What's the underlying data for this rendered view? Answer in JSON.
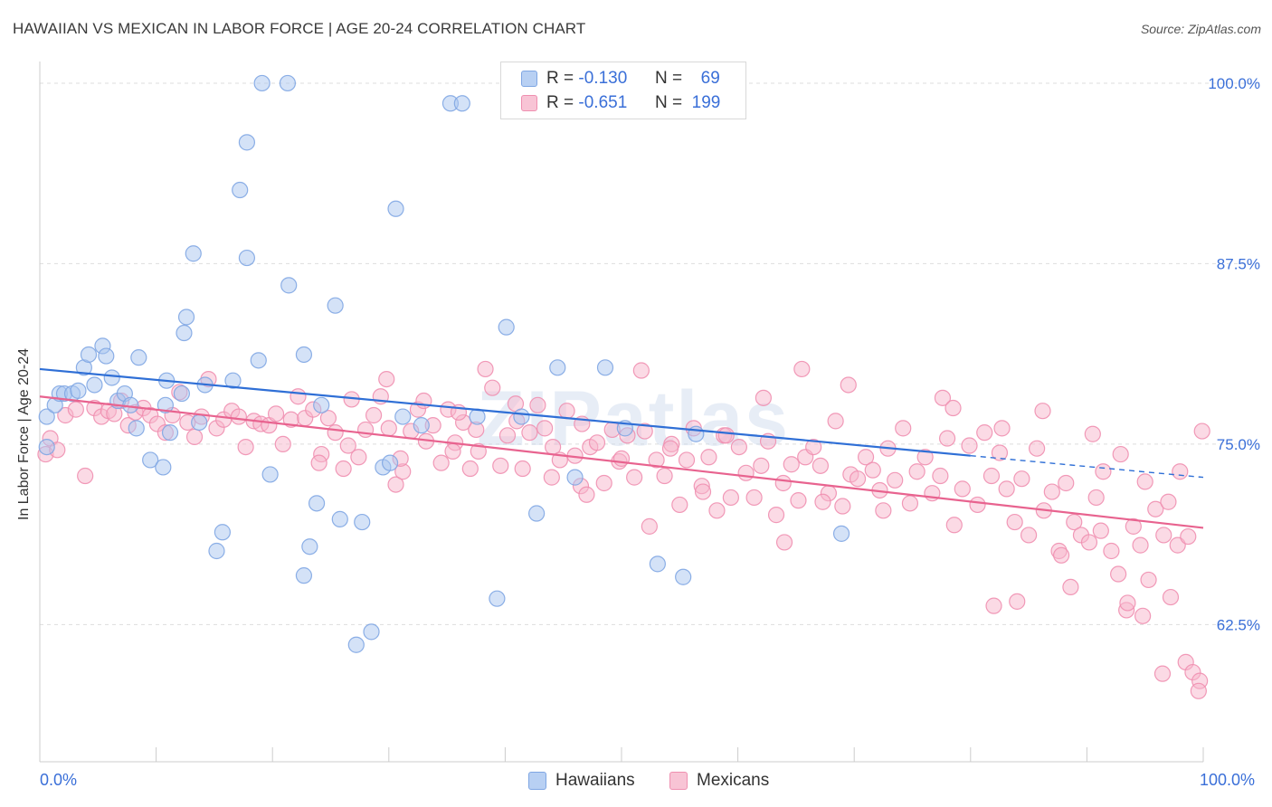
{
  "title": "HAWAIIAN VS MEXICAN IN LABOR FORCE | AGE 20-24 CORRELATION CHART",
  "source": "Source: ZipAtlas.com",
  "watermark": "ZIPatlas",
  "legend_top": [
    {
      "r_label": "R =",
      "r_value": "-0.130",
      "n_label": "N =",
      "n_value": "69"
    },
    {
      "r_label": "R =",
      "r_value": "-0.651",
      "n_label": "N =",
      "n_value": "199"
    }
  ],
  "colors": {
    "blue_fill": "#a9c6f0",
    "blue_stroke": "#7fa6e3",
    "blue_line": "#2f6fd6",
    "pink_fill": "#f7b6cb",
    "pink_stroke": "#ef8fb0",
    "pink_line": "#e8638f",
    "axis_text": "#3a6fd8",
    "grid": "#dddddd"
  },
  "chart_data": {
    "type": "scatter",
    "title": "HAWAIIAN VS MEXICAN IN LABOR FORCE | AGE 20-24 CORRELATION CHART",
    "xlabel": "",
    "ylabel": "In Labor Force | Age 20-24",
    "xlim": [
      0,
      100
    ],
    "ylim": [
      53,
      101.5
    ],
    "x_tick_labels": [
      "0.0%",
      "100.0%"
    ],
    "y_ticks": [
      62.5,
      75.0,
      87.5,
      100.0
    ],
    "y_tick_labels": [
      "62.5%",
      "75.0%",
      "87.5%",
      "100.0%"
    ],
    "grid": true,
    "legend": "bottom",
    "series": [
      {
        "name": "Hawaiians",
        "r": -0.13,
        "n": 69,
        "trend": {
          "x": [
            0,
            80
          ],
          "y": [
            80.2,
            74.2
          ],
          "dashed_to": [
            100,
            72.7
          ]
        },
        "points": [
          [
            0.6,
            76.9
          ],
          [
            0.6,
            74.8
          ],
          [
            1.3,
            77.7
          ],
          [
            1.7,
            78.5
          ],
          [
            2.1,
            78.5
          ],
          [
            2.8,
            78.5
          ],
          [
            3.3,
            78.7
          ],
          [
            3.8,
            80.3
          ],
          [
            4.2,
            81.2
          ],
          [
            4.7,
            79.1
          ],
          [
            5.4,
            81.8
          ],
          [
            5.7,
            81.1
          ],
          [
            6.2,
            79.6
          ],
          [
            6.7,
            78.0
          ],
          [
            7.3,
            78.5
          ],
          [
            7.8,
            77.7
          ],
          [
            8.3,
            76.1
          ],
          [
            8.5,
            81.0
          ],
          [
            9.5,
            73.9
          ],
          [
            10.6,
            73.4
          ],
          [
            10.8,
            77.7
          ],
          [
            10.9,
            79.4
          ],
          [
            11.2,
            75.8
          ],
          [
            12.2,
            78.5
          ],
          [
            12.4,
            82.7
          ],
          [
            12.6,
            83.8
          ],
          [
            13.2,
            88.2
          ],
          [
            13.7,
            76.5
          ],
          [
            14.2,
            79.1
          ],
          [
            15.2,
            67.6
          ],
          [
            15.7,
            68.9
          ],
          [
            16.6,
            79.4
          ],
          [
            17.2,
            92.6
          ],
          [
            17.8,
            95.9
          ],
          [
            17.8,
            87.9
          ],
          [
            18.8,
            80.8
          ],
          [
            19.1,
            100.0
          ],
          [
            19.8,
            72.9
          ],
          [
            21.3,
            100.0
          ],
          [
            21.4,
            86.0
          ],
          [
            22.7,
            81.2
          ],
          [
            22.7,
            65.9
          ],
          [
            23.2,
            67.9
          ],
          [
            23.8,
            70.9
          ],
          [
            24.2,
            77.7
          ],
          [
            25.4,
            84.6
          ],
          [
            25.8,
            69.8
          ],
          [
            27.2,
            61.1
          ],
          [
            27.7,
            69.6
          ],
          [
            28.5,
            62.0
          ],
          [
            29.5,
            73.4
          ],
          [
            30.1,
            73.7
          ],
          [
            30.6,
            91.3
          ],
          [
            31.2,
            76.9
          ],
          [
            32.8,
            76.3
          ],
          [
            35.3,
            98.6
          ],
          [
            36.3,
            98.6
          ],
          [
            37.6,
            76.9
          ],
          [
            39.3,
            64.3
          ],
          [
            40.1,
            83.1
          ],
          [
            41.4,
            76.9
          ],
          [
            42.7,
            70.2
          ],
          [
            44.5,
            80.3
          ],
          [
            46.0,
            72.7
          ],
          [
            48.6,
            80.3
          ],
          [
            50.3,
            76.1
          ],
          [
            53.1,
            66.7
          ],
          [
            55.3,
            65.8
          ],
          [
            56.4,
            75.7
          ],
          [
            68.9,
            68.8
          ]
        ]
      },
      {
        "name": "Mexicans",
        "r": -0.651,
        "n": 199,
        "trend": {
          "x": [
            0,
            100
          ],
          "y": [
            78.3,
            69.2
          ]
        },
        "points": [
          [
            0.5,
            74.3
          ],
          [
            0.9,
            75.4
          ],
          [
            1.5,
            74.6
          ],
          [
            2.2,
            77.0
          ],
          [
            3.1,
            77.4
          ],
          [
            3.9,
            72.8
          ],
          [
            4.7,
            77.5
          ],
          [
            5.3,
            76.9
          ],
          [
            5.9,
            77.3
          ],
          [
            6.4,
            77.1
          ],
          [
            7.0,
            78.0
          ],
          [
            7.6,
            76.3
          ],
          [
            8.2,
            77.2
          ],
          [
            8.9,
            77.5
          ],
          [
            9.5,
            77.0
          ],
          [
            10.1,
            76.4
          ],
          [
            10.8,
            75.8
          ],
          [
            11.4,
            77.0
          ],
          [
            12.0,
            78.6
          ],
          [
            12.7,
            76.5
          ],
          [
            13.3,
            75.5
          ],
          [
            13.9,
            76.9
          ],
          [
            14.5,
            79.5
          ],
          [
            15.2,
            76.1
          ],
          [
            15.8,
            76.7
          ],
          [
            16.5,
            77.3
          ],
          [
            17.1,
            76.9
          ],
          [
            17.7,
            74.8
          ],
          [
            18.4,
            76.6
          ],
          [
            19.0,
            76.4
          ],
          [
            19.7,
            76.3
          ],
          [
            20.3,
            77.1
          ],
          [
            20.9,
            75.0
          ],
          [
            21.6,
            76.7
          ],
          [
            22.2,
            78.3
          ],
          [
            22.8,
            76.8
          ],
          [
            23.5,
            77.4
          ],
          [
            24.2,
            74.3
          ],
          [
            24.8,
            76.8
          ],
          [
            25.4,
            75.8
          ],
          [
            26.1,
            73.3
          ],
          [
            26.8,
            78.1
          ],
          [
            27.4,
            74.1
          ],
          [
            28.0,
            76.0
          ],
          [
            28.7,
            77.0
          ],
          [
            29.3,
            78.3
          ],
          [
            30.0,
            76.1
          ],
          [
            30.6,
            72.2
          ],
          [
            31.2,
            73.1
          ],
          [
            31.9,
            75.9
          ],
          [
            32.5,
            77.4
          ],
          [
            33.2,
            75.2
          ],
          [
            33.8,
            76.3
          ],
          [
            34.5,
            73.7
          ],
          [
            35.1,
            77.4
          ],
          [
            35.7,
            75.1
          ],
          [
            36.4,
            76.5
          ],
          [
            37.0,
            73.3
          ],
          [
            37.7,
            74.5
          ],
          [
            38.3,
            80.2
          ],
          [
            38.9,
            78.9
          ],
          [
            39.6,
            73.5
          ],
          [
            40.2,
            75.6
          ],
          [
            40.9,
            77.8
          ],
          [
            41.5,
            73.3
          ],
          [
            42.1,
            75.8
          ],
          [
            42.8,
            77.7
          ],
          [
            43.4,
            76.1
          ],
          [
            44.1,
            74.8
          ],
          [
            44.7,
            73.9
          ],
          [
            45.3,
            77.3
          ],
          [
            46.0,
            74.2
          ],
          [
            46.6,
            76.4
          ],
          [
            47.3,
            74.8
          ],
          [
            47.9,
            75.1
          ],
          [
            48.5,
            72.3
          ],
          [
            49.2,
            76.0
          ],
          [
            49.8,
            73.8
          ],
          [
            50.5,
            75.6
          ],
          [
            51.1,
            72.7
          ],
          [
            51.7,
            80.1
          ],
          [
            52.4,
            69.3
          ],
          [
            53.0,
            73.9
          ],
          [
            53.7,
            72.8
          ],
          [
            54.3,
            75.0
          ],
          [
            55.0,
            70.8
          ],
          [
            55.6,
            73.9
          ],
          [
            56.2,
            76.1
          ],
          [
            56.9,
            72.1
          ],
          [
            57.5,
            74.1
          ],
          [
            58.2,
            70.4
          ],
          [
            58.8,
            75.6
          ],
          [
            59.4,
            71.3
          ],
          [
            60.1,
            74.8
          ],
          [
            60.7,
            73.0
          ],
          [
            61.4,
            71.3
          ],
          [
            62.0,
            73.5
          ],
          [
            62.6,
            75.2
          ],
          [
            63.3,
            70.1
          ],
          [
            63.9,
            72.3
          ],
          [
            64.6,
            73.6
          ],
          [
            65.2,
            71.1
          ],
          [
            65.8,
            74.1
          ],
          [
            66.5,
            74.8
          ],
          [
            67.1,
            73.5
          ],
          [
            67.8,
            71.6
          ],
          [
            68.4,
            76.6
          ],
          [
            69.0,
            70.7
          ],
          [
            69.7,
            72.9
          ],
          [
            70.3,
            72.6
          ],
          [
            71.0,
            74.1
          ],
          [
            71.6,
            73.2
          ],
          [
            72.2,
            71.8
          ],
          [
            72.9,
            74.7
          ],
          [
            73.5,
            72.5
          ],
          [
            74.2,
            76.1
          ],
          [
            74.8,
            70.9
          ],
          [
            75.4,
            73.1
          ],
          [
            76.1,
            74.1
          ],
          [
            76.7,
            71.6
          ],
          [
            77.4,
            72.8
          ],
          [
            78.0,
            75.4
          ],
          [
            78.6,
            69.4
          ],
          [
            79.3,
            71.9
          ],
          [
            79.9,
            74.9
          ],
          [
            80.6,
            70.8
          ],
          [
            81.2,
            75.8
          ],
          [
            81.8,
            72.8
          ],
          [
            82.5,
            74.4
          ],
          [
            83.1,
            71.9
          ],
          [
            83.8,
            69.6
          ],
          [
            84.4,
            72.6
          ],
          [
            85.0,
            68.7
          ],
          [
            85.7,
            74.7
          ],
          [
            86.3,
            70.4
          ],
          [
            87.0,
            71.7
          ],
          [
            87.6,
            67.6
          ],
          [
            88.2,
            72.3
          ],
          [
            88.9,
            69.6
          ],
          [
            89.5,
            68.7
          ],
          [
            90.2,
            68.2
          ],
          [
            90.8,
            71.3
          ],
          [
            91.4,
            73.1
          ],
          [
            92.1,
            67.6
          ],
          [
            92.7,
            66.0
          ],
          [
            93.4,
            63.5
          ],
          [
            94.0,
            69.3
          ],
          [
            94.6,
            68.0
          ],
          [
            95.3,
            65.6
          ],
          [
            95.9,
            70.5
          ],
          [
            96.6,
            68.7
          ],
          [
            97.2,
            64.4
          ],
          [
            97.8,
            68.0
          ],
          [
            98.5,
            59.9
          ],
          [
            99.1,
            59.2
          ],
          [
            99.7,
            58.6
          ],
          [
            26.5,
            74.9
          ],
          [
            31.0,
            74.0
          ],
          [
            36.0,
            77.2
          ],
          [
            41.0,
            76.6
          ],
          [
            46.5,
            72.1
          ],
          [
            52.0,
            75.9
          ],
          [
            57.0,
            71.7
          ],
          [
            62.2,
            78.2
          ],
          [
            67.3,
            71.0
          ],
          [
            72.5,
            70.4
          ],
          [
            77.6,
            78.2
          ],
          [
            82.7,
            76.1
          ],
          [
            87.8,
            67.3
          ],
          [
            92.9,
            74.3
          ],
          [
            98.0,
            73.1
          ],
          [
            24.0,
            73.7
          ],
          [
            44.0,
            72.7
          ],
          [
            64.0,
            68.2
          ],
          [
            84.0,
            64.1
          ],
          [
            94.8,
            63.1
          ],
          [
            93.5,
            64.0
          ],
          [
            96.5,
            59.1
          ],
          [
            98.7,
            68.6
          ],
          [
            99.6,
            57.9
          ],
          [
            99.9,
            75.9
          ],
          [
            90.5,
            75.7
          ],
          [
            86.2,
            77.3
          ],
          [
            82.0,
            63.8
          ],
          [
            88.6,
            65.1
          ],
          [
            91.2,
            69.0
          ],
          [
            95.0,
            72.4
          ],
          [
            97.0,
            71.0
          ],
          [
            69.5,
            79.1
          ],
          [
            78.5,
            77.5
          ],
          [
            65.5,
            80.2
          ],
          [
            59.0,
            75.6
          ],
          [
            54.2,
            74.7
          ],
          [
            50.0,
            74.0
          ],
          [
            47.0,
            71.5
          ],
          [
            37.5,
            76.0
          ],
          [
            35.5,
            74.5
          ],
          [
            33.0,
            78.0
          ],
          [
            29.8,
            79.5
          ]
        ]
      }
    ]
  }
}
